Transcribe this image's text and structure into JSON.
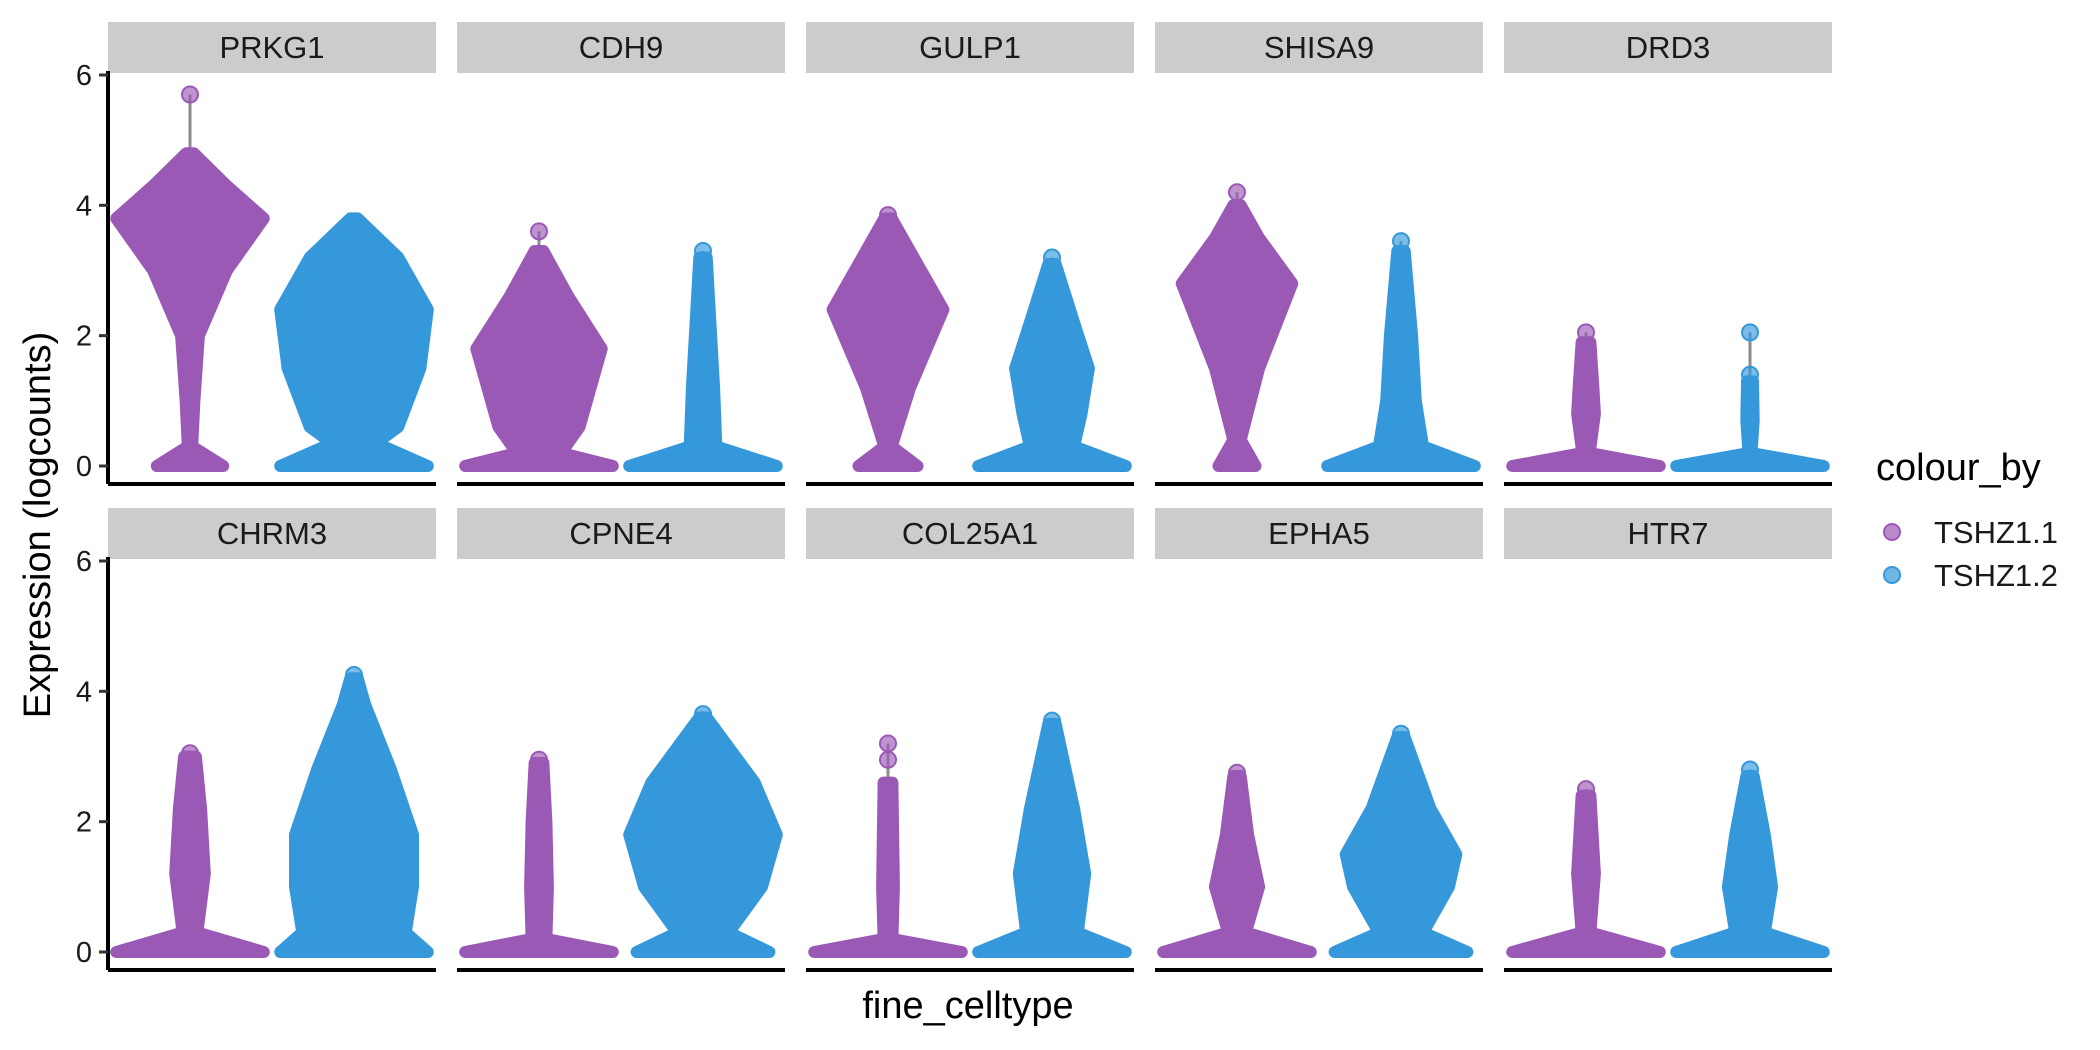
{
  "chart_data": {
    "type": "violin",
    "xlabel": "fine_celltype",
    "ylabel": "Expression (logcounts)",
    "ylim": [
      0,
      6
    ],
    "yticks": [
      0,
      2,
      4,
      6
    ],
    "grid": false,
    "legend": {
      "title": "colour_by",
      "position": "right",
      "entries": [
        {
          "label": "TSHZ1.1",
          "color": "#9B59B6"
        },
        {
          "label": "TSHZ1.2",
          "color": "#3498DB"
        }
      ]
    },
    "groups": [
      "TSHZ1.1",
      "TSHZ1.2"
    ],
    "panels": [
      {
        "gene": "PRKG1",
        "violins": [
          {
            "group": "TSHZ1.1",
            "max": 5.7,
            "profile": [
              [
                0,
                0.45
              ],
              [
                0.3,
                0.03
              ],
              [
                1,
                0.06
              ],
              [
                2,
                0.12
              ],
              [
                3,
                0.5
              ],
              [
                3.8,
                1.0
              ],
              [
                4.3,
                0.5
              ],
              [
                4.8,
                0.05
              ]
            ],
            "outliers": [
              5.7
            ]
          },
          {
            "group": "TSHZ1.2",
            "max": 3.85,
            "profile": [
              [
                0,
                1.0
              ],
              [
                0.35,
                0.3
              ],
              [
                0.6,
                0.6
              ],
              [
                1.5,
                0.9
              ],
              [
                2.4,
                1.0
              ],
              [
                3.2,
                0.6
              ],
              [
                3.8,
                0.05
              ]
            ],
            "outliers": []
          }
        ]
      },
      {
        "gene": "CDH9",
        "violins": [
          {
            "group": "TSHZ1.1",
            "max": 3.6,
            "profile": [
              [
                0,
                1.0
              ],
              [
                0.2,
                0.3
              ],
              [
                0.6,
                0.55
              ],
              [
                1.8,
                0.85
              ],
              [
                2.6,
                0.4
              ],
              [
                3.3,
                0.06
              ]
            ],
            "outliers": [
              3.6
            ]
          },
          {
            "group": "TSHZ1.2",
            "max": 3.3,
            "profile": [
              [
                0,
                1.0
              ],
              [
                0.3,
                0.18
              ],
              [
                1.2,
                0.15
              ],
              [
                2.2,
                0.1
              ],
              [
                3.2,
                0.05
              ]
            ],
            "outliers": [
              3.3
            ]
          }
        ]
      },
      {
        "gene": "GULP1",
        "violins": [
          {
            "group": "TSHZ1.1",
            "max": 3.85,
            "profile": [
              [
                0,
                0.4
              ],
              [
                0.3,
                0.05
              ],
              [
                1.2,
                0.3
              ],
              [
                2.4,
                0.75
              ],
              [
                3.2,
                0.35
              ],
              [
                3.8,
                0.05
              ]
            ],
            "outliers": [
              3.85
            ]
          },
          {
            "group": "TSHZ1.2",
            "max": 3.2,
            "profile": [
              [
                0,
                1.0
              ],
              [
                0.3,
                0.3
              ],
              [
                0.8,
                0.4
              ],
              [
                1.5,
                0.5
              ],
              [
                2.2,
                0.3
              ],
              [
                3.1,
                0.05
              ]
            ],
            "outliers": [
              3.2
            ]
          }
        ]
      },
      {
        "gene": "SHISA9",
        "violins": [
          {
            "group": "TSHZ1.1",
            "max": 4.2,
            "profile": [
              [
                0,
                0.25
              ],
              [
                0.4,
                0.05
              ],
              [
                1.5,
                0.3
              ],
              [
                2.8,
                0.75
              ],
              [
                3.5,
                0.3
              ],
              [
                4.0,
                0.05
              ]
            ],
            "outliers": [
              4.2
            ]
          },
          {
            "group": "TSHZ1.2",
            "max": 3.45,
            "profile": [
              [
                0,
                1.0
              ],
              [
                0.3,
                0.3
              ],
              [
                1.0,
                0.2
              ],
              [
                2.0,
                0.15
              ],
              [
                3.3,
                0.05
              ]
            ],
            "outliers": [
              3.45
            ]
          }
        ]
      },
      {
        "gene": "DRD3",
        "violins": [
          {
            "group": "TSHZ1.1",
            "max": 2.05,
            "profile": [
              [
                0,
                1.0
              ],
              [
                0.2,
                0.05
              ],
              [
                0.8,
                0.12
              ],
              [
                1.2,
                0.1
              ],
              [
                1.9,
                0.06
              ]
            ],
            "outliers": [
              2.05
            ]
          },
          {
            "group": "TSHZ1.2",
            "max": 2.05,
            "profile": [
              [
                0,
                1.0
              ],
              [
                0.2,
                0.02
              ],
              [
                0.7,
                0.05
              ],
              [
                1.3,
                0.04
              ]
            ],
            "outliers": [
              2.05,
              1.4
            ]
          }
        ]
      },
      {
        "gene": "CHRM3",
        "violins": [
          {
            "group": "TSHZ1.1",
            "max": 3.05,
            "profile": [
              [
                0,
                1.0
              ],
              [
                0.3,
                0.1
              ],
              [
                1.2,
                0.2
              ],
              [
                2.2,
                0.15
              ],
              [
                3.0,
                0.08
              ]
            ],
            "outliers": [
              3.05
            ]
          },
          {
            "group": "TSHZ1.2",
            "max": 4.25,
            "profile": [
              [
                0,
                1.0
              ],
              [
                0.3,
                0.7
              ],
              [
                1.0,
                0.8
              ],
              [
                1.8,
                0.8
              ],
              [
                2.8,
                0.5
              ],
              [
                3.8,
                0.15
              ],
              [
                4.2,
                0.05
              ]
            ],
            "outliers": [
              4.25
            ]
          }
        ]
      },
      {
        "gene": "CPNE4",
        "violins": [
          {
            "group": "TSHZ1.1",
            "max": 2.95,
            "profile": [
              [
                0,
                1.0
              ],
              [
                0.2,
                0.1
              ],
              [
                1.0,
                0.12
              ],
              [
                2.0,
                0.1
              ],
              [
                2.9,
                0.06
              ]
            ],
            "outliers": [
              2.95
            ]
          },
          {
            "group": "TSHZ1.2",
            "max": 3.65,
            "profile": [
              [
                0,
                0.9
              ],
              [
                0.3,
                0.35
              ],
              [
                1.0,
                0.8
              ],
              [
                1.8,
                1.0
              ],
              [
                2.6,
                0.7
              ],
              [
                3.6,
                0.05
              ]
            ],
            "outliers": [
              3.65
            ]
          }
        ]
      },
      {
        "gene": "COL25A1",
        "violins": [
          {
            "group": "TSHZ1.1",
            "max": 3.2,
            "profile": [
              [
                0,
                1.0
              ],
              [
                0.2,
                0.06
              ],
              [
                1.0,
                0.08
              ],
              [
                2.6,
                0.06
              ]
            ],
            "outliers": [
              3.2,
              2.95
            ]
          },
          {
            "group": "TSHZ1.2",
            "max": 3.55,
            "profile": [
              [
                0,
                1.0
              ],
              [
                0.3,
                0.35
              ],
              [
                1.2,
                0.45
              ],
              [
                2.2,
                0.3
              ],
              [
                3.5,
                0.05
              ]
            ],
            "outliers": [
              3.55
            ]
          }
        ]
      },
      {
        "gene": "EPHA5",
        "violins": [
          {
            "group": "TSHZ1.1",
            "max": 2.75,
            "profile": [
              [
                0,
                1.0
              ],
              [
                0.3,
                0.12
              ],
              [
                1.0,
                0.3
              ],
              [
                1.8,
                0.15
              ],
              [
                2.7,
                0.05
              ]
            ],
            "outliers": [
              2.75
            ]
          },
          {
            "group": "TSHZ1.2",
            "max": 3.35,
            "profile": [
              [
                0,
                0.9
              ],
              [
                0.3,
                0.3
              ],
              [
                1.0,
                0.65
              ],
              [
                1.5,
                0.75
              ],
              [
                2.2,
                0.4
              ],
              [
                3.3,
                0.05
              ]
            ],
            "outliers": [
              3.35
            ]
          }
        ]
      },
      {
        "gene": "HTR7",
        "violins": [
          {
            "group": "TSHZ1.1",
            "max": 2.5,
            "profile": [
              [
                0,
                1.0
              ],
              [
                0.3,
                0.06
              ],
              [
                1.2,
                0.12
              ],
              [
                2.4,
                0.06
              ]
            ],
            "outliers": [
              2.5
            ]
          },
          {
            "group": "TSHZ1.2",
            "max": 2.8,
            "profile": [
              [
                0,
                1.0
              ],
              [
                0.3,
                0.2
              ],
              [
                1.0,
                0.3
              ],
              [
                1.8,
                0.2
              ],
              [
                2.7,
                0.05
              ]
            ],
            "outliers": [
              2.8
            ]
          }
        ]
      }
    ]
  }
}
